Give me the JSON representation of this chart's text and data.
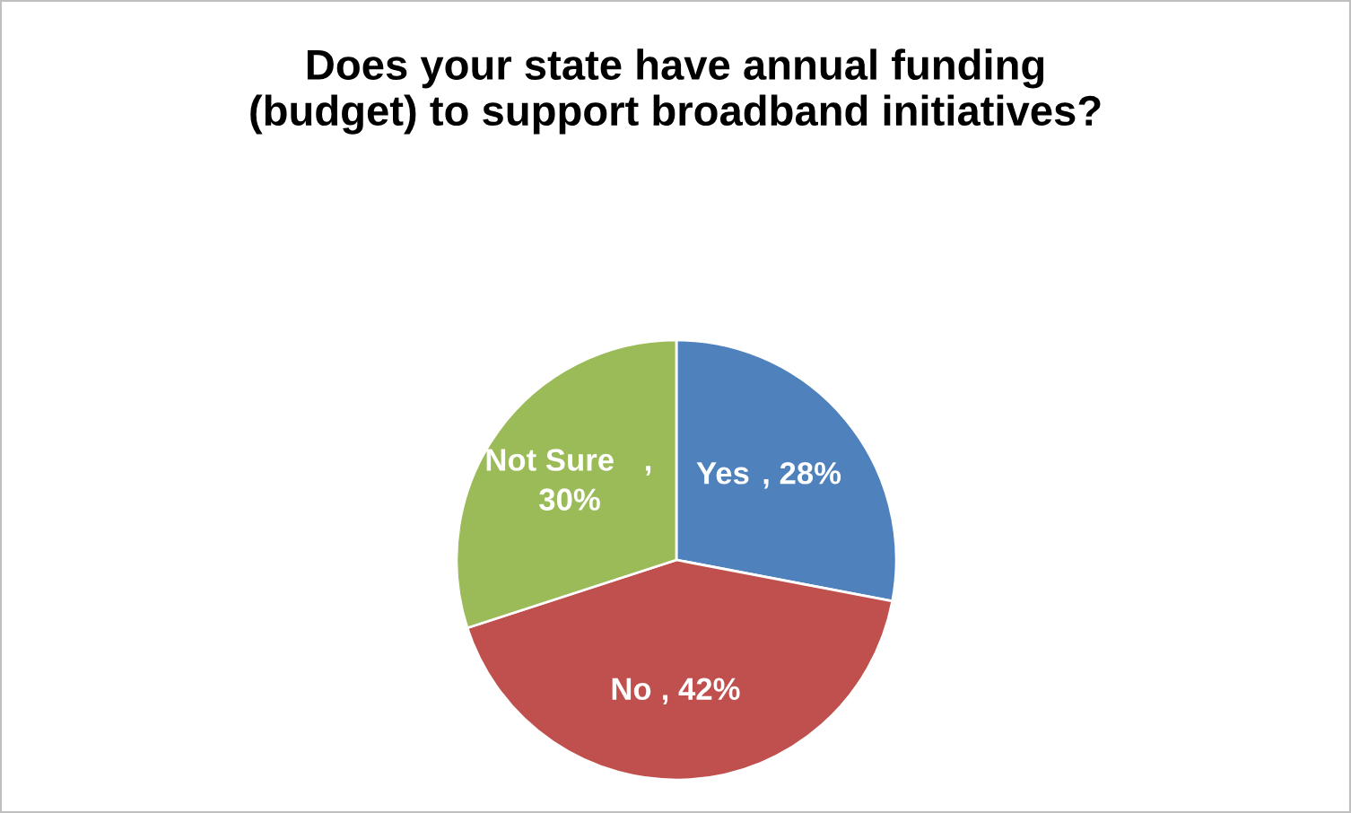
{
  "chart_data": {
    "type": "pie",
    "title": "Does your state have annual funding\n(budget) to support broadband initiatives?",
    "categories": [
      "Yes",
      "No",
      "Not Sure"
    ],
    "values": [
      28,
      42,
      30
    ],
    "colors": [
      "#4f81bd",
      "#c0504d",
      "#9bbb59"
    ],
    "value_labels": [
      ", 28%",
      ", 42%",
      ", 30%"
    ],
    "legend": false
  }
}
